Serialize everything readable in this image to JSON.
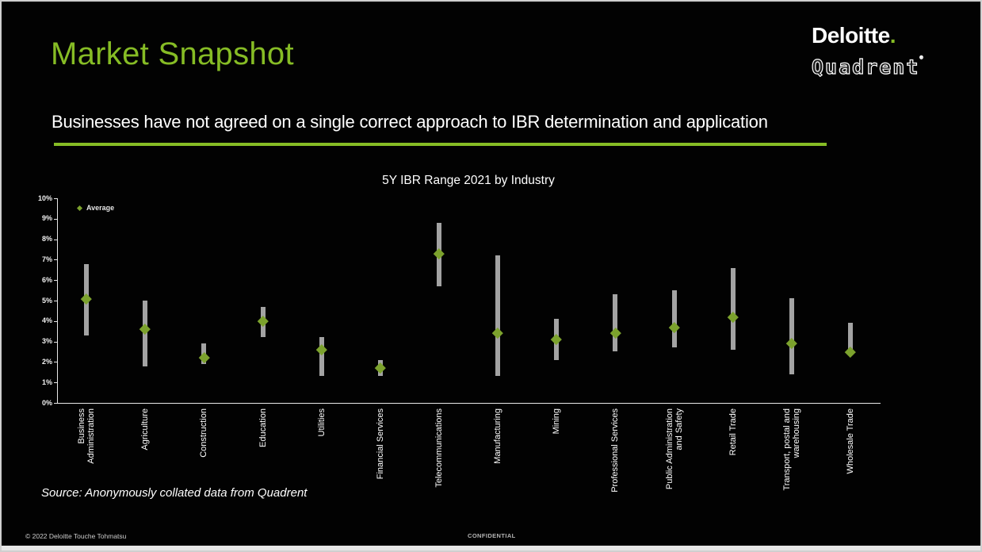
{
  "slide": {
    "title": "Market Snapshot",
    "subtitle": "Businesses have not agreed on a single correct approach to IBR determination and application",
    "source_note": "Source: Anonymously collated data from Quadrent",
    "copyright": "© 2022 Deloitte Touche Tohmatsu",
    "confidential": "CONFIDENTIAL"
  },
  "branding": {
    "deloitte": "Deloitte",
    "deloitte_dot": ".",
    "quadrent": "Quadrent",
    "registered_mark": "®"
  },
  "colors": {
    "accent_green": "#86BC25",
    "marker_green": "#7CA22D",
    "range_bar_gray": "#A3A3A3",
    "background_black": "#020202",
    "bottom_strip_gray": "#E7E7E7"
  },
  "chart_data": {
    "type": "bar",
    "subtype": "floating-range-bar-with-average-markers",
    "title": "5Y IBR Range 2021 by Industry",
    "grid": false,
    "legend": [
      {
        "label": "Average",
        "marker": "diamond",
        "color": "#7CA22D",
        "position": "top-left-inside"
      }
    ],
    "y_axis": {
      "min": 0,
      "max": 10,
      "step": 1,
      "unit": "%",
      "tick_labels": [
        "0%",
        "1%",
        "2%",
        "3%",
        "4%",
        "5%",
        "6%",
        "7%",
        "8%",
        "9%",
        "10%"
      ]
    },
    "categories": [
      {
        "name": "Business Administration",
        "lines": [
          "Business",
          "Administration"
        ]
      },
      {
        "name": "Agriculture",
        "lines": [
          "Agriculture"
        ]
      },
      {
        "name": "Construction",
        "lines": [
          "Construction"
        ]
      },
      {
        "name": "Education",
        "lines": [
          "Education"
        ]
      },
      {
        "name": "Utilities",
        "lines": [
          "Utilities"
        ]
      },
      {
        "name": "Financial Services",
        "lines": [
          "Financial Services"
        ]
      },
      {
        "name": "Telecommunications",
        "lines": [
          "Telecommunications"
        ]
      },
      {
        "name": "Manufacturing",
        "lines": [
          "Manufacturing"
        ]
      },
      {
        "name": "Mining",
        "lines": [
          "Mining"
        ]
      },
      {
        "name": "Professional Services",
        "lines": [
          "Professional Services"
        ]
      },
      {
        "name": "Public Administration and Safety",
        "lines": [
          "Public Administration",
          "and Safety"
        ]
      },
      {
        "name": "Retail Trade",
        "lines": [
          "Retail Trade"
        ]
      },
      {
        "name": "Transport, postal and warehousing",
        "lines": [
          "Transport, postal and",
          "warehousing"
        ]
      },
      {
        "name": "Wholesale Trade",
        "lines": [
          "Wholesale Trade"
        ]
      }
    ],
    "series": [
      {
        "name": "5Y IBR Range",
        "type": "range",
        "unit": "%",
        "low": [
          3.3,
          1.8,
          1.9,
          3.2,
          1.3,
          1.3,
          5.7,
          1.3,
          2.1,
          2.5,
          2.7,
          2.6,
          1.4,
          2.4
        ],
        "high": [
          6.8,
          5.0,
          2.9,
          4.7,
          3.2,
          2.1,
          8.8,
          7.2,
          4.1,
          5.3,
          5.5,
          6.6,
          5.1,
          3.9
        ]
      },
      {
        "name": "Average",
        "type": "point",
        "marker": "diamond",
        "unit": "%",
        "values": [
          5.1,
          3.6,
          2.2,
          4.0,
          2.6,
          1.7,
          7.3,
          3.4,
          3.1,
          3.4,
          3.7,
          4.2,
          2.9,
          2.5
        ]
      }
    ]
  }
}
